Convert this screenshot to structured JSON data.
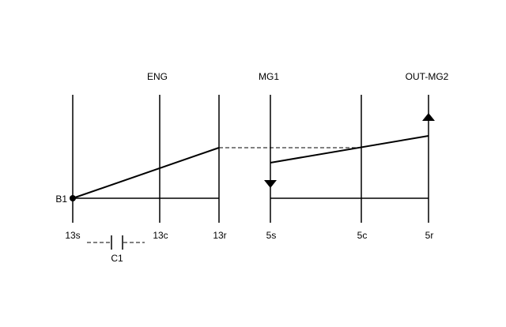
{
  "header_labels": {
    "eng": "ENG",
    "mg1": "MG1",
    "out_mg2": "OUT-MG2"
  },
  "point_label": "B1",
  "axis_labels": {
    "s13": "13s",
    "c13": "13c",
    "r13": "13r",
    "s5": "5s",
    "c5": "5c",
    "r5": "5r"
  },
  "clutch_label": "C1"
}
